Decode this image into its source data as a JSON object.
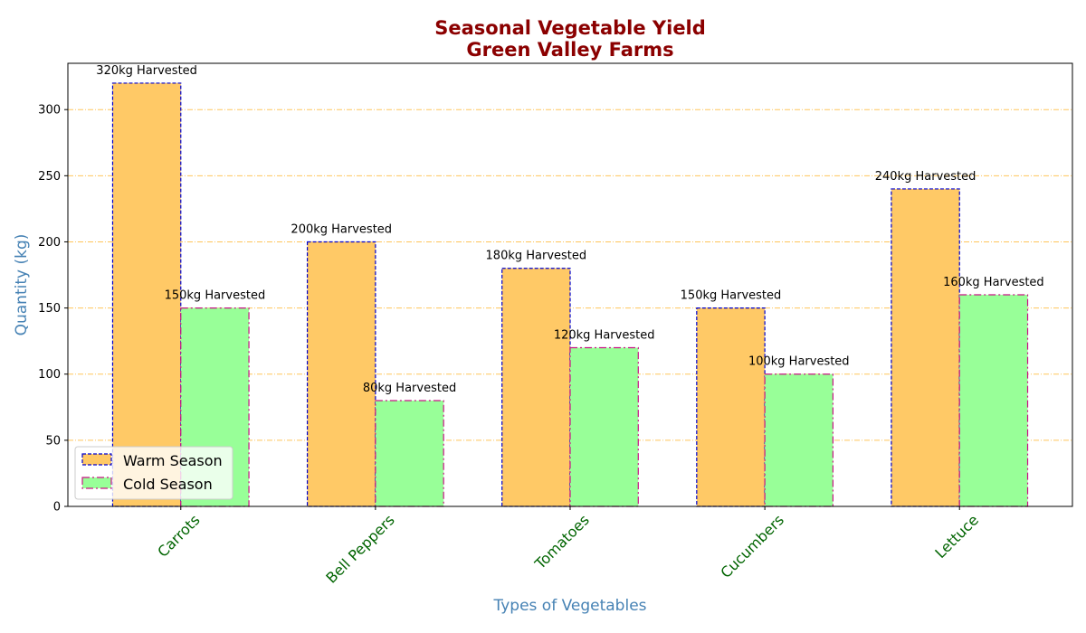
{
  "chart_data": {
    "type": "bar",
    "title_lines": [
      "Seasonal Vegetable Yield",
      "Green Valley Farms"
    ],
    "xlabel": "Types of Vegetables",
    "ylabel": "Quantity (kg)",
    "categories": [
      "Carrots",
      "Bell Peppers",
      "Tomatoes",
      "Cucumbers",
      "Lettuce"
    ],
    "series": [
      {
        "name": "Warm Season",
        "values": [
          320,
          200,
          180,
          150,
          240
        ],
        "data_labels": [
          "320kg Harvested",
          "200kg Harvested",
          "180kg Harvested",
          "150kg Harvested",
          "240kg Harvested"
        ],
        "fill": "#ffc966",
        "edge": "#0000cd"
      },
      {
        "name": "Cold Season",
        "values": [
          150,
          80,
          120,
          100,
          160
        ],
        "data_labels": [
          "150kg Harvested",
          "80kg Harvested",
          "120kg Harvested",
          "100kg Harvested",
          "160kg Harvested"
        ],
        "fill": "#98ff98",
        "edge": "#c71585"
      }
    ],
    "ylim": [
      0,
      335
    ],
    "yticks": [
      0,
      50,
      100,
      150,
      200,
      250,
      300
    ],
    "grid": "horizontal dash-dot, orange",
    "grid_color": "#ffb732",
    "legend": "lower-left",
    "xtick_rotation": 45
  }
}
